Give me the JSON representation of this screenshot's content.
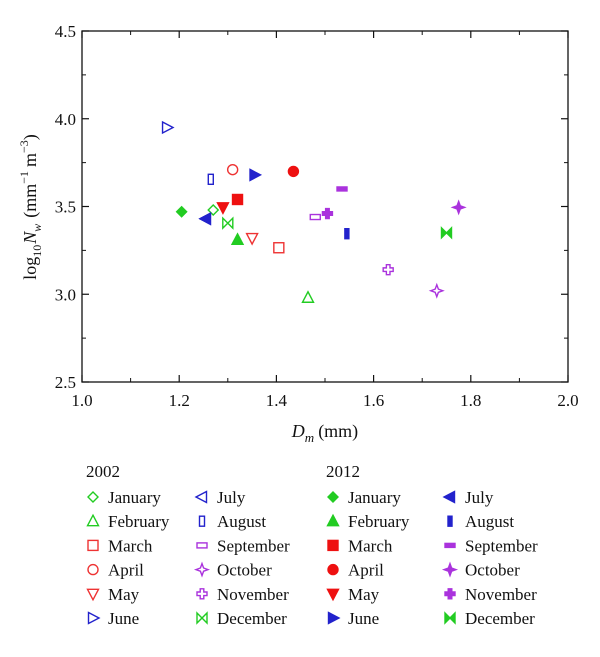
{
  "chart_data": {
    "type": "scatter",
    "xlabel_main": "D",
    "xlabel_sub": "m",
    "xlabel_unit": "(mm)",
    "ylabel_prefix": "log",
    "ylabel_base": "10",
    "ylabel_var": "N",
    "ylabel_sub": "w",
    "ylabel_unit_a": "(mm",
    "ylabel_exp_a": "−1",
    "ylabel_unit_b": "m",
    "ylabel_exp_b": "−3",
    "ylabel_close": ")",
    "xlim": [
      1.0,
      2.0
    ],
    "ylim": [
      2.5,
      4.5
    ],
    "xticks": [
      "1.0",
      "1.2",
      "1.4",
      "1.6",
      "1.8",
      "2.0"
    ],
    "yticks": [
      "2.5",
      "3.0",
      "3.5",
      "4.0",
      "4.5"
    ],
    "grid": false,
    "legend_groups": [
      "2002",
      "2012"
    ],
    "series": [
      {
        "group": "2002",
        "name": "January",
        "marker": "diamond-open",
        "color": "#22cc22",
        "x": 1.27,
        "y": 3.48
      },
      {
        "group": "2002",
        "name": "February",
        "marker": "triangle-open",
        "color": "#22cc22",
        "x": 1.465,
        "y": 2.98
      },
      {
        "group": "2002",
        "name": "March",
        "marker": "square-open",
        "color": "#ee3333",
        "x": 1.405,
        "y": 3.265
      },
      {
        "group": "2002",
        "name": "April",
        "marker": "circle-open",
        "color": "#ee3333",
        "x": 1.31,
        "y": 3.71
      },
      {
        "group": "2002",
        "name": "May",
        "marker": "tridown-open",
        "color": "#ee3333",
        "x": 1.35,
        "y": 3.32
      },
      {
        "group": "2002",
        "name": "June",
        "marker": "triright-open",
        "color": "#2222cc",
        "x": 1.175,
        "y": 3.95
      },
      {
        "group": "2002",
        "name": "July",
        "marker": "trileft-open",
        "color": "#2222cc",
        "x": 1.255,
        "y": 3.43
      },
      {
        "group": "2002",
        "name": "August",
        "marker": "vrect-open",
        "color": "#2222cc",
        "x": 1.265,
        "y": 3.655
      },
      {
        "group": "2002",
        "name": "September",
        "marker": "hrect-open",
        "color": "#aa33dd",
        "x": 1.48,
        "y": 3.44
      },
      {
        "group": "2002",
        "name": "October",
        "marker": "star4-open",
        "color": "#aa33dd",
        "x": 1.73,
        "y": 3.02
      },
      {
        "group": "2002",
        "name": "November",
        "marker": "cross-open",
        "color": "#aa33dd",
        "x": 1.63,
        "y": 3.14
      },
      {
        "group": "2002",
        "name": "December",
        "marker": "bowtie-open",
        "color": "#22cc22",
        "x": 1.3,
        "y": 3.405
      },
      {
        "group": "2012",
        "name": "January",
        "marker": "diamond",
        "color": "#22cc22",
        "x": 1.205,
        "y": 3.47
      },
      {
        "group": "2012",
        "name": "February",
        "marker": "triangle",
        "color": "#22cc22",
        "x": 1.32,
        "y": 3.31
      },
      {
        "group": "2012",
        "name": "March",
        "marker": "square",
        "color": "#ee1111",
        "x": 1.32,
        "y": 3.54
      },
      {
        "group": "2012",
        "name": "April",
        "marker": "circle",
        "color": "#ee1111",
        "x": 1.435,
        "y": 3.7
      },
      {
        "group": "2012",
        "name": "May",
        "marker": "tridown",
        "color": "#ee1111",
        "x": 1.29,
        "y": 3.495
      },
      {
        "group": "2012",
        "name": "June",
        "marker": "triright",
        "color": "#2222cc",
        "x": 1.355,
        "y": 3.68
      },
      {
        "group": "2012",
        "name": "July",
        "marker": "trileft",
        "color": "#2222cc",
        "x": 1.255,
        "y": 3.43
      },
      {
        "group": "2012",
        "name": "August",
        "marker": "vbar",
        "color": "#2222cc",
        "x": 1.545,
        "y": 3.345
      },
      {
        "group": "2012",
        "name": "September",
        "marker": "hbar",
        "color": "#aa33dd",
        "x": 1.535,
        "y": 3.6
      },
      {
        "group": "2012",
        "name": "October",
        "marker": "star4",
        "color": "#aa33dd",
        "x": 1.775,
        "y": 3.495
      },
      {
        "group": "2012",
        "name": "November",
        "marker": "cross",
        "color": "#aa33dd",
        "x": 1.505,
        "y": 3.46
      },
      {
        "group": "2012",
        "name": "December",
        "marker": "bowtie",
        "color": "#22cc22",
        "x": 1.75,
        "y": 3.35
      }
    ]
  }
}
